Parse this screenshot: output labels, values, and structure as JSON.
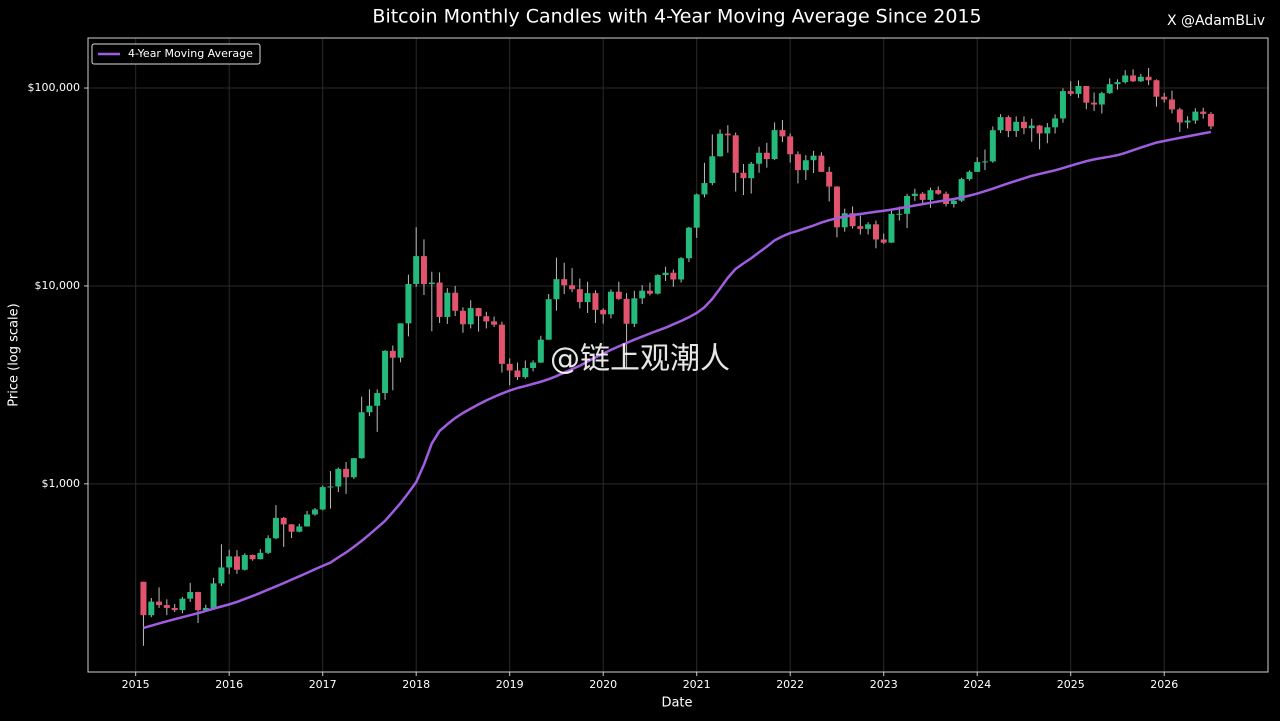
{
  "chart_data": {
    "type": "candlestick",
    "title": "Bitcoin Monthly Candles with 4-Year Moving Average Since 2015",
    "attribution": "X @AdamBLiv",
    "watermark": "@链上观潮人",
    "x_label": "Date",
    "y_label": "Price (log scale)",
    "log_scale": true,
    "grid": true,
    "legend_position": "upper-left",
    "up_color": "#25b97c",
    "down_color": "#e2536d",
    "xlim": [
      2014.49,
      2027.11
    ],
    "xticks": [
      2015,
      2016,
      2017,
      2018,
      2019,
      2020,
      2021,
      2022,
      2023,
      2024,
      2025,
      2026
    ],
    "ylim": [
      112,
      179000
    ],
    "yticks": [
      {
        "value": 1000,
        "label": "$1,000"
      },
      {
        "value": 10000,
        "label": "$10,000"
      },
      {
        "value": 100000,
        "label": "$100,000"
      }
    ],
    "x": [
      2015.083,
      2015.167,
      2015.25,
      2015.333,
      2015.417,
      2015.5,
      2015.583,
      2015.667,
      2015.75,
      2015.833,
      2015.917,
      2016,
      2016.083,
      2016.167,
      2016.25,
      2016.333,
      2016.417,
      2016.5,
      2016.583,
      2016.667,
      2016.75,
      2016.833,
      2016.917,
      2017,
      2017.083,
      2017.167,
      2017.25,
      2017.333,
      2017.417,
      2017.5,
      2017.583,
      2017.667,
      2017.75,
      2017.833,
      2017.917,
      2018,
      2018.083,
      2018.167,
      2018.25,
      2018.333,
      2018.417,
      2018.5,
      2018.583,
      2018.667,
      2018.75,
      2018.833,
      2018.917,
      2019,
      2019.083,
      2019.167,
      2019.25,
      2019.333,
      2019.417,
      2019.5,
      2019.583,
      2019.667,
      2019.75,
      2019.833,
      2019.917,
      2020,
      2020.083,
      2020.167,
      2020.25,
      2020.333,
      2020.417,
      2020.5,
      2020.583,
      2020.667,
      2020.75,
      2020.833,
      2020.917,
      2021,
      2021.083,
      2021.167,
      2021.25,
      2021.333,
      2021.417,
      2021.5,
      2021.583,
      2021.667,
      2021.75,
      2021.833,
      2021.917,
      2022,
      2022.083,
      2022.167,
      2022.25,
      2022.333,
      2022.417,
      2022.5,
      2022.583,
      2022.667,
      2022.75,
      2022.833,
      2022.917,
      2023,
      2023.083,
      2023.167,
      2023.25,
      2023.333,
      2023.417,
      2023.5,
      2023.583,
      2023.667,
      2023.75,
      2023.833,
      2023.917,
      2024,
      2024.083,
      2024.167,
      2024.25,
      2024.333,
      2024.417,
      2024.5,
      2024.583,
      2024.667,
      2024.75,
      2024.833,
      2024.917,
      2025,
      2025.083,
      2025.167,
      2025.25,
      2025.333,
      2025.417,
      2025.5,
      2025.583,
      2025.667,
      2025.75,
      2025.833,
      2025.917,
      2026,
      2026.083,
      2026.167,
      2026.25,
      2026.333,
      2026.417,
      2026.5
    ],
    "open": [
      320,
      217,
      254,
      244,
      236,
      230,
      263,
      284,
      230,
      236,
      314,
      378,
      430,
      368,
      437,
      416,
      448,
      531,
      673,
      624,
      573,
      609,
      700,
      742,
      963,
      970,
      1190,
      1080,
      1348,
      2300,
      2480,
      2875,
      4700,
      4340,
      6470,
      10230,
      14150,
      10220,
      10400,
      6970,
      9240,
      7490,
      6400,
      7730,
      7030,
      6620,
      6370,
      4040,
      3740,
      3460,
      3850,
      4100,
      5350,
      8570,
      10820,
      10080,
      9630,
      8290,
      9200,
      7570,
      7190,
      9350,
      8600,
      6440,
      8660,
      9460,
      9140,
      11350,
      11660,
      10780,
      13800,
      19700,
      29000,
      33100,
      45200,
      58800,
      57700,
      37300,
      35040,
      41460,
      47100,
      43790,
      61300,
      57000,
      46300,
      38480,
      43190,
      45540,
      37710,
      31790,
      19780,
      23300,
      20050,
      19430,
      20490,
      17170,
      16550,
      23140,
      23150,
      28480,
      29250,
      27220,
      30480,
      29230,
      25940,
      26970,
      34670,
      37720,
      42270,
      42580,
      61200,
      71300,
      60640,
      67500,
      62680,
      64620,
      58970,
      63330,
      70220,
      96450,
      93430,
      102400,
      84370,
      82550,
      94200,
      104600,
      107100,
      115800,
      108200,
      114000,
      109500,
      90400,
      87500,
      78000,
      67000,
      68500,
      76000,
      74000
    ],
    "high": [
      320,
      265,
      300,
      261,
      247,
      268,
      316,
      285,
      245,
      335,
      495,
      465,
      462,
      446,
      439,
      468,
      550,
      780,
      680,
      626,
      628,
      730,
      755,
      980,
      1160,
      1210,
      1290,
      1350,
      2760,
      3000,
      3000,
      4740,
      5000,
      6470,
      11400,
      19800,
      17200,
      11800,
      11700,
      9750,
      10000,
      7800,
      8470,
      7760,
      7400,
      7000,
      6600,
      4300,
      4100,
      4200,
      4200,
      5600,
      9100,
      13900,
      13100,
      12300,
      10900,
      10500,
      9500,
      7700,
      9600,
      10500,
      9200,
      9450,
      10100,
      10400,
      11450,
      12500,
      12100,
      14000,
      19900,
      29300,
      41900,
      58300,
      61800,
      64900,
      59600,
      41300,
      42300,
      50500,
      52900,
      67000,
      69000,
      59000,
      47900,
      45800,
      48200,
      47400,
      40000,
      31900,
      24600,
      25200,
      22700,
      21000,
      21400,
      18400,
      23900,
      25200,
      29200,
      31000,
      29800,
      31400,
      31800,
      30000,
      27500,
      35200,
      38400,
      44700,
      48900,
      64000,
      73800,
      72700,
      71900,
      71900,
      70000,
      65000,
      66500,
      73600,
      99600,
      108300,
      109300,
      102500,
      95000,
      95800,
      111900,
      110600,
      123100,
      124400,
      117900,
      126200,
      110600,
      94600,
      97000,
      79500,
      72000,
      79000,
      79500,
      75500
    ],
    "low": [
      152,
      212,
      236,
      217,
      225,
      222,
      253,
      198,
      226,
      236,
      305,
      350,
      351,
      365,
      409,
      415,
      442,
      525,
      480,
      532,
      569,
      608,
      690,
      735,
      750,
      910,
      890,
      1060,
      1340,
      2200,
      1830,
      2660,
      2970,
      4110,
      5560,
      9900,
      9000,
      5900,
      6500,
      6430,
      7050,
      5800,
      6100,
      5880,
      6100,
      6200,
      3650,
      3150,
      3350,
      3400,
      3700,
      4080,
      5350,
      7500,
      9100,
      9300,
      7700,
      7300,
      6500,
      6450,
      6850,
      8500,
      3850,
      6200,
      8100,
      8950,
      9050,
      10600,
      9900,
      10400,
      13200,
      17500,
      28000,
      32300,
      45000,
      47100,
      30000,
      28800,
      29300,
      37300,
      39600,
      43300,
      53300,
      42000,
      33000,
      34300,
      37200,
      37600,
      26700,
      17600,
      18800,
      19500,
      18200,
      18200,
      15500,
      16300,
      16500,
      21400,
      19600,
      26900,
      25900,
      24800,
      28900,
      25200,
      24900,
      26600,
      34100,
      37700,
      38500,
      41900,
      59300,
      56500,
      56600,
      58400,
      53500,
      49000,
      52600,
      58900,
      66800,
      91300,
      89200,
      78200,
      76600,
      74400,
      93400,
      98200,
      105300,
      107300,
      107300,
      103500,
      80600,
      84400,
      74500,
      60000,
      62500,
      66000,
      70000,
      62000
    ],
    "close": [
      217,
      254,
      244,
      236,
      230,
      263,
      284,
      230,
      236,
      314,
      378,
      430,
      368,
      437,
      416,
      448,
      531,
      673,
      624,
      573,
      609,
      700,
      742,
      963,
      970,
      1190,
      1080,
      1348,
      2300,
      2480,
      2875,
      4700,
      4340,
      6470,
      10230,
      14150,
      10220,
      10400,
      6970,
      9240,
      7490,
      6400,
      7730,
      7030,
      6620,
      6370,
      4040,
      3740,
      3460,
      3850,
      4100,
      5350,
      8570,
      10820,
      10080,
      9630,
      8290,
      9200,
      7570,
      7190,
      9350,
      8600,
      6440,
      8660,
      9460,
      9140,
      11350,
      11660,
      10780,
      13800,
      19700,
      29000,
      33100,
      45200,
      58800,
      57700,
      37300,
      35040,
      41460,
      47100,
      43790,
      61300,
      57000,
      46300,
      38480,
      43190,
      45540,
      37710,
      31790,
      19780,
      23300,
      20050,
      19430,
      20490,
      17170,
      16550,
      23140,
      23150,
      28480,
      29250,
      27220,
      30480,
      29230,
      25940,
      26970,
      34670,
      37720,
      42270,
      42580,
      61200,
      71300,
      60640,
      67500,
      62680,
      64620,
      58970,
      63330,
      70220,
      96450,
      93430,
      102400,
      84370,
      82550,
      94200,
      104600,
      107100,
      115800,
      108200,
      114000,
      109500,
      90400,
      87500,
      78000,
      67000,
      68500,
      76000,
      74000,
      64000
    ],
    "series": [
      {
        "name": "4-Year Moving Average",
        "color": "#a05de0",
        "values": [
          187,
          192,
          197,
          202,
          207,
          212,
          217,
          222,
          228,
          234,
          240,
          246,
          253,
          262,
          271,
          281,
          292,
          303,
          315,
          328,
          341,
          355,
          370,
          385,
          400,
          425,
          450,
          480,
          515,
          555,
          600,
          650,
          720,
          800,
          900,
          1020,
          1250,
          1600,
          1850,
          2000,
          2150,
          2280,
          2400,
          2520,
          2640,
          2750,
          2860,
          2960,
          3050,
          3120,
          3200,
          3280,
          3380,
          3500,
          3650,
          3800,
          3950,
          4150,
          4350,
          4550,
          4750,
          4950,
          5150,
          5350,
          5550,
          5750,
          5950,
          6150,
          6400,
          6650,
          6950,
          7300,
          7800,
          8600,
          9700,
          11000,
          12200,
          13000,
          13800,
          14800,
          15800,
          17000,
          17800,
          18500,
          19000,
          19600,
          20200,
          20900,
          21500,
          22000,
          22400,
          22800,
          23100,
          23400,
          23700,
          24000,
          24300,
          24700,
          25100,
          25500,
          25900,
          26300,
          26700,
          27100,
          27500,
          28000,
          28600,
          29300,
          30100,
          31000,
          32000,
          33000,
          34000,
          35000,
          36000,
          36800,
          37600,
          38400,
          39400,
          40500,
          41600,
          42700,
          43600,
          44300,
          45000,
          45800,
          47000,
          48500,
          50000,
          51500,
          53000,
          54000,
          55000,
          56000,
          57000,
          58000,
          59000,
          60000
        ]
      }
    ]
  }
}
